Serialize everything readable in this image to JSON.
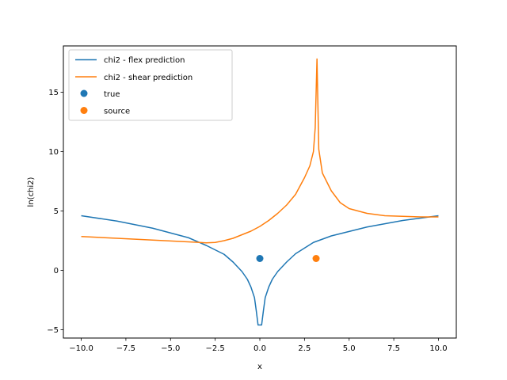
{
  "chart_data": {
    "type": "line",
    "title": "",
    "xlabel": "x",
    "ylabel": "ln(chi2)",
    "xlim": [
      -11.0,
      11.0
    ],
    "ylim": [
      -5.7,
      18.9
    ],
    "xticks": [
      -10.0,
      -7.5,
      -5.0,
      -2.5,
      0.0,
      2.5,
      5.0,
      7.5,
      10.0
    ],
    "xtick_labels": [
      "−10.0",
      "−7.5",
      "−5.0",
      "−2.5",
      "0.0",
      "2.5",
      "5.0",
      "7.5",
      "10.0"
    ],
    "yticks": [
      -5,
      0,
      5,
      10,
      15
    ],
    "ytick_labels": [
      "−5",
      "0",
      "5",
      "10",
      "15"
    ],
    "grid": false,
    "legend_position": "top-left",
    "series": [
      {
        "name": "chi2 - flex prediction",
        "type": "line",
        "color": "#1f77b4",
        "x": [
          -10.0,
          -8.0,
          -6.0,
          -4.0,
          -3.0,
          -2.0,
          -1.5,
          -1.0,
          -0.7,
          -0.5,
          -0.3,
          -0.2,
          -0.1,
          0.0,
          0.1,
          0.2,
          0.3,
          0.5,
          0.7,
          1.0,
          1.5,
          2.0,
          3.0,
          4.0,
          6.0,
          8.0,
          10.0
        ],
        "y": [
          4.6,
          4.15,
          3.55,
          2.75,
          2.1,
          1.35,
          0.7,
          -0.1,
          -0.75,
          -1.4,
          -2.3,
          -3.4,
          -4.6,
          -4.6,
          -4.6,
          -3.4,
          -2.3,
          -1.4,
          -0.75,
          -0.1,
          0.7,
          1.4,
          2.35,
          2.9,
          3.65,
          4.2,
          4.6
        ]
      },
      {
        "name": "chi2 - shear prediction",
        "type": "line",
        "color": "#ff7f0e",
        "x": [
          -10.0,
          -8.0,
          -6.0,
          -4.0,
          -3.0,
          -2.5,
          -2.0,
          -1.5,
          -1.0,
          -0.5,
          0.0,
          0.5,
          1.0,
          1.5,
          2.0,
          2.5,
          2.8,
          3.0,
          3.1,
          3.2,
          3.3,
          3.5,
          4.0,
          4.5,
          5.0,
          6.0,
          7.0,
          8.0,
          9.0,
          10.0
        ],
        "y": [
          2.85,
          2.7,
          2.55,
          2.4,
          2.32,
          2.35,
          2.5,
          2.7,
          3.0,
          3.3,
          3.7,
          4.2,
          4.8,
          5.5,
          6.4,
          7.8,
          8.8,
          10.0,
          12.0,
          17.8,
          10.2,
          8.2,
          6.7,
          5.7,
          5.2,
          4.8,
          4.6,
          4.55,
          4.5,
          4.5
        ]
      },
      {
        "name": "true",
        "type": "scatter",
        "color": "#1f77b4",
        "x": [
          0.0
        ],
        "y": [
          1.0
        ]
      },
      {
        "name": "source",
        "type": "scatter",
        "color": "#ff7f0e",
        "x": [
          3.15
        ],
        "y": [
          1.0
        ]
      }
    ]
  }
}
